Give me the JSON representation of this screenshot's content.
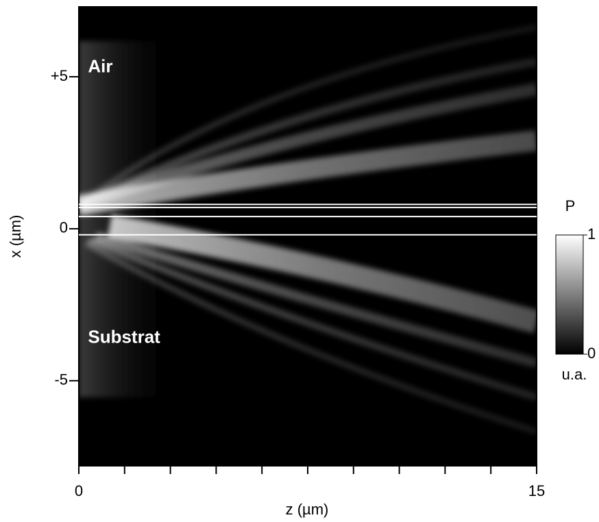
{
  "chart_data": {
    "type": "heatmap",
    "xlabel": "z (µm)",
    "ylabel": "x (µm)",
    "xlim": [
      0,
      15
    ],
    "ylim": [
      -7.8,
      7.3
    ],
    "xticks": [
      0,
      15
    ],
    "xminor_ticks": [
      1.5,
      3,
      4.5,
      6,
      7.5,
      9,
      10.5,
      12,
      13.5
    ],
    "yticks": [
      {
        "value": 5,
        "label": "+5"
      },
      0,
      -5
    ],
    "layer_lines": [
      0.8,
      0.7,
      0.4,
      -0.2
    ],
    "annotations": [
      {
        "text": "Air",
        "x": 0.3,
        "y": 5.3
      },
      {
        "text": "Substrat",
        "x": 0.3,
        "y": -3.6
      }
    ],
    "colorbar": {
      "label": "P",
      "unit": "u.a.",
      "range": [
        0,
        1
      ],
      "ticks": [
        1,
        0
      ],
      "colors": [
        "#000000",
        "#ffffff"
      ]
    }
  }
}
